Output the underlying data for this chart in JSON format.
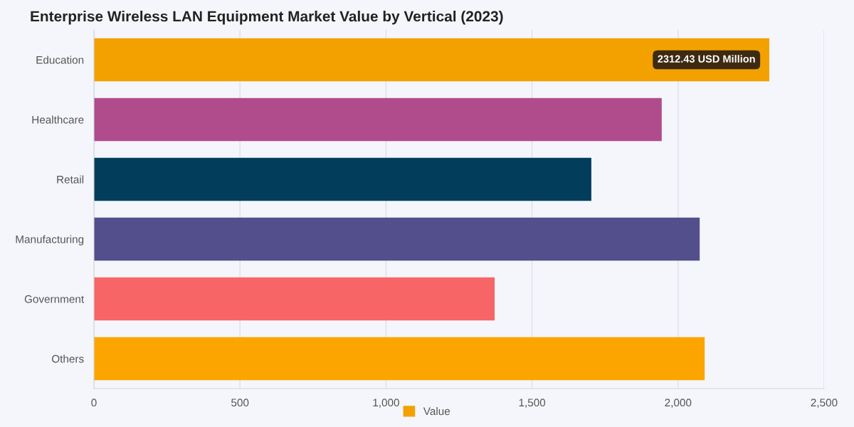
{
  "chart_data": {
    "type": "bar",
    "orientation": "horizontal",
    "title": "Enterprise Wireless LAN Equipment Market Value by Vertical (2023)",
    "categories": [
      "Education",
      "Healthcare",
      "Retail",
      "Manufacturing",
      "Government",
      "Others"
    ],
    "series": [
      {
        "name": "Value",
        "color": "#f2a100",
        "colors": [
          "#f2a100",
          "#b04c8c",
          "#023d5b",
          "#534f8c",
          "#f76566",
          "#fca500"
        ],
        "values": [
          2312.43,
          1944,
          1703,
          2074,
          1372,
          2091
        ],
        "value_labels": [
          "2312.43 USD Million",
          null,
          null,
          null,
          null,
          null
        ]
      }
    ],
    "xlim": [
      0,
      2500
    ],
    "xticks": [
      {
        "value": 0,
        "label": "0"
      },
      {
        "value": 500,
        "label": "500"
      },
      {
        "value": 1000,
        "label": "1,000"
      },
      {
        "value": 1500,
        "label": "1,500"
      },
      {
        "value": 2000,
        "label": "2,000"
      },
      {
        "value": 2500,
        "label": "2,500"
      }
    ],
    "grid": "x",
    "legend": "bottom"
  }
}
